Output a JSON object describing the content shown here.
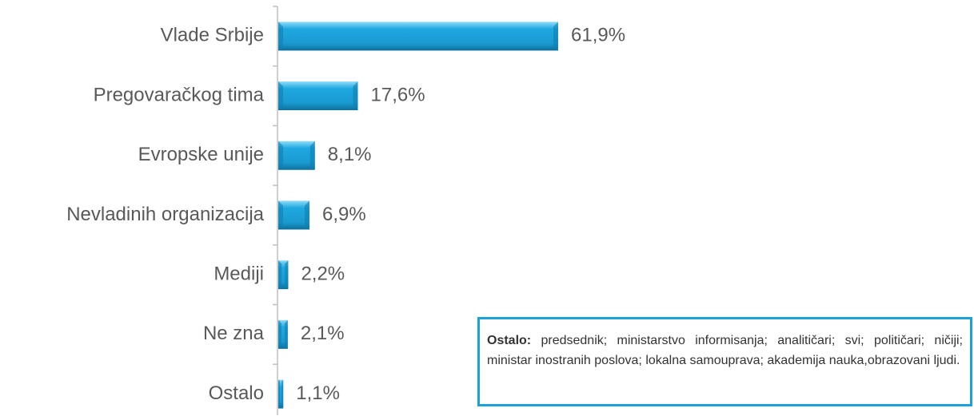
{
  "chart_data": {
    "type": "hbar",
    "categories": [
      "Vlade Srbije",
      "Pregovaračkog tima",
      "Evropske unije",
      "Nevladinih organizacija",
      "Mediji",
      "Ne zna",
      "Ostalo"
    ],
    "values": [
      61.9,
      17.6,
      8.1,
      6.9,
      2.2,
      2.1,
      1.1
    ],
    "value_labels": [
      "61,9%",
      "17,6%",
      "8,1%",
      "6,9%",
      "2,2%",
      "2,1%",
      "1,1%"
    ],
    "color": "#1ea8e0",
    "annotation": {
      "label": "Ostalo:",
      "text": "predsednik; ministarstvo informisanja; analitičari; svi; političari; ničiji; ministar inostranih poslova; lokalna samouprava; akademija nauka,obrazovani ljudi."
    }
  }
}
